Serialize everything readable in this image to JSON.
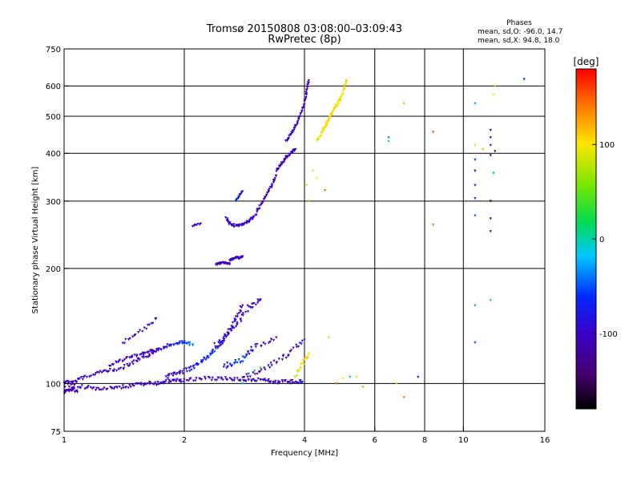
{
  "figure": {
    "title_line1": "Tromsø 20150808 03:08:00–03:09:43",
    "title_line2": "RwPretec (8p)"
  },
  "phase_stats": {
    "heading": "Phases",
    "line_o": "mean, sd,O: -96.0, 14.7",
    "line_x": "mean, sd,X:  94.8, 18.0"
  },
  "colorbar": {
    "title": "[deg]",
    "min": -180,
    "max": 180,
    "ticks": [
      -100,
      0,
      100
    ],
    "tick_labels": [
      "-100",
      "0",
      "100"
    ]
  },
  "chart_data": {
    "type": "scatter",
    "title": "Tromsø 20150808 03:08:00–03:09:43",
    "subtitle": "RwPretec (8p)",
    "xlabel": "Frequency [MHz]",
    "ylabel": "Stationary phase Virtual Height [km]",
    "x_scale": "log",
    "y_scale": "log",
    "xlim": [
      1,
      16
    ],
    "ylim": [
      75,
      750
    ],
    "x_ticks": [
      1,
      2,
      4,
      6,
      8,
      10,
      16
    ],
    "x_tick_labels": [
      "1",
      "2",
      "4",
      "6",
      "8",
      "10",
      "16"
    ],
    "y_ticks": [
      75,
      100,
      200,
      300,
      400,
      500,
      600,
      750
    ],
    "y_tick_labels": [
      "75",
      "100",
      "200",
      "300",
      "400",
      "500",
      "600",
      "750"
    ],
    "grid": true,
    "legend": "none",
    "color_by": "phase [deg]",
    "colormap": "rainbow",
    "traces": [
      {
        "x": [
          1.0,
          1.1,
          1.2,
          1.3,
          1.4,
          1.5,
          1.6,
          1.7,
          1.8,
          1.9,
          2.0,
          2.2,
          2.4,
          2.6,
          2.8,
          3.0,
          3.2,
          3.4,
          3.6,
          3.8,
          3.95
        ],
        "y": [
          99,
          98,
          97,
          97,
          98,
          99,
          100,
          100,
          101,
          102,
          102,
          103,
          103,
          103,
          102,
          102,
          102,
          101,
          101,
          101,
          101
        ],
        "phase": [
          -110,
          -105,
          -108,
          -102,
          -110,
          -104,
          -98,
          -106,
          -100,
          -95,
          -102,
          -108,
          -100,
          -96,
          -104,
          -110,
          -106,
          -100,
          -104,
          -108,
          -70
        ],
        "jitter": 0.02,
        "density": 3
      },
      {
        "x": [
          1.0,
          1.05,
          1.1,
          1.2,
          1.3,
          1.4,
          1.5,
          1.6,
          1.7
        ],
        "y": [
          101,
          100,
          103,
          106,
          108,
          110,
          114,
          118,
          121
        ],
        "phase": [
          -105,
          -110,
          -100,
          -108,
          -104,
          -102,
          -98,
          -106,
          -100
        ],
        "jitter": 0.02,
        "density": 3
      },
      {
        "x": [
          1.0,
          1.02,
          1.05,
          1.08
        ],
        "y": [
          95,
          96,
          97,
          95
        ],
        "phase": [
          -110,
          -108,
          -112,
          -105
        ],
        "jitter": 0.02,
        "density": 3
      },
      {
        "x": [
          1.3,
          1.4,
          1.5,
          1.6,
          1.7,
          1.8,
          1.9,
          2.0,
          2.1
        ],
        "y": [
          112,
          115,
          118,
          121,
          122,
          125,
          127,
          128,
          126
        ],
        "phase": [
          -100,
          -104,
          -98,
          -102,
          -96,
          -90,
          -70,
          -60,
          -40
        ],
        "jitter": 0.02,
        "density": 3
      },
      {
        "x": [
          1.8,
          1.9,
          2.0,
          2.1,
          2.2,
          2.3,
          2.4,
          2.5,
          2.6,
          2.7,
          2.8
        ],
        "y": [
          104,
          106,
          108,
          110,
          114,
          118,
          124,
          130,
          138,
          148,
          160
        ],
        "phase": [
          -100,
          -96,
          -90,
          -80,
          -70,
          -60,
          -75,
          -90,
          -85,
          -95,
          -100
        ],
        "jitter": 0.025,
        "density": 3
      },
      {
        "x": [
          2.4,
          2.5,
          2.6,
          2.7,
          2.8,
          2.9,
          3.0,
          3.1
        ],
        "y": [
          126,
          130,
          136,
          142,
          150,
          158,
          162,
          165
        ],
        "phase": [
          -90,
          -96,
          -100,
          -92,
          -104,
          -98,
          -110,
          -106
        ],
        "jitter": 0.03,
        "density": 2
      },
      {
        "x": [
          2.5,
          2.6,
          2.7,
          2.8,
          2.9,
          3.0,
          3.2,
          3.4
        ],
        "y": [
          110,
          112,
          114,
          116,
          120,
          124,
          128,
          132
        ],
        "phase": [
          -80,
          -70,
          -60,
          -50,
          -80,
          -96,
          -104,
          -110
        ],
        "jitter": 0.03,
        "density": 2
      },
      {
        "x": [
          2.8,
          3.0,
          3.2,
          3.4,
          3.6,
          3.8,
          4.0
        ],
        "y": [
          104,
          106,
          110,
          114,
          118,
          124,
          130
        ],
        "phase": [
          -110,
          -106,
          -110,
          -102,
          -108,
          -100,
          -60
        ],
        "jitter": 0.025,
        "density": 2
      },
      {
        "x": [
          1.4,
          1.5,
          1.6,
          1.7
        ],
        "y": [
          128,
          133,
          140,
          148
        ],
        "phase": [
          -90,
          -104,
          -98,
          -100
        ],
        "jitter": 0.02,
        "density": 2
      },
      {
        "x": [
          2.4,
          2.45,
          2.5,
          2.55,
          2.6
        ],
        "y": [
          205,
          206,
          207,
          206,
          205
        ],
        "phase": [
          -110,
          -106,
          -102,
          -108,
          -104
        ],
        "jitter": 0.01,
        "density": 2
      },
      {
        "x": [
          2.6,
          2.65,
          2.7,
          2.75,
          2.8
        ],
        "y": [
          210,
          212,
          214,
          213,
          215
        ],
        "phase": [
          -102,
          -108,
          -104,
          -100,
          -110
        ],
        "jitter": 0.01,
        "density": 2
      },
      {
        "x": [
          2.1,
          2.2
        ],
        "y": [
          258,
          262
        ],
        "phase": [
          -108,
          -104
        ],
        "jitter": 0.01,
        "density": 2
      },
      {
        "x": [
          2.55,
          2.6,
          2.7,
          2.8,
          2.9,
          3.0,
          3.1,
          3.2,
          3.3,
          3.4
        ],
        "y": [
          270,
          262,
          258,
          260,
          265,
          275,
          290,
          308,
          328,
          350
        ],
        "phase": [
          -100,
          -96,
          -104,
          -100,
          -102,
          -98,
          -104,
          -106,
          -102,
          -108
        ],
        "jitter": 0.015,
        "density": 3
      },
      {
        "x": [
          2.7,
          2.75,
          2.8
        ],
        "y": [
          300,
          310,
          318
        ],
        "phase": [
          -70,
          -80,
          -90
        ],
        "jitter": 0.01,
        "density": 2
      },
      {
        "x": [
          3.4,
          3.5,
          3.6,
          3.7,
          3.8
        ],
        "y": [
          360,
          375,
          390,
          400,
          410
        ],
        "phase": [
          -104,
          -100,
          -106,
          -102,
          -108
        ],
        "jitter": 0.012,
        "density": 3
      },
      {
        "x": [
          3.6,
          3.7,
          3.8,
          3.9,
          4.0,
          4.05,
          4.1
        ],
        "y": [
          430,
          450,
          470,
          500,
          540,
          580,
          620
        ],
        "phase": [
          -100,
          -104,
          -98,
          -100,
          -96,
          -104,
          -108
        ],
        "jitter": 0.012,
        "density": 3
      },
      {
        "x": [
          4.3,
          4.4,
          4.5,
          4.6,
          4.7,
          4.8,
          4.9,
          5.0,
          5.1
        ],
        "y": [
          430,
          450,
          470,
          490,
          510,
          530,
          550,
          580,
          620
        ],
        "phase": [
          90,
          100,
          95,
          110,
          105,
          100,
          95,
          100,
          110
        ],
        "jitter": 0.015,
        "density": 3
      },
      {
        "x": [
          3.8,
          3.9,
          4.0,
          4.1
        ],
        "y": [
          105,
          110,
          115,
          120
        ],
        "phase": [
          80,
          95,
          110,
          100
        ],
        "jitter": 0.02,
        "density": 2
      }
    ],
    "points": [
      {
        "x": 4.3,
        "y": 345,
        "phase": 100
      },
      {
        "x": 4.5,
        "y": 320,
        "phase": 140
      },
      {
        "x": 4.2,
        "y": 360,
        "phase": 110
      },
      {
        "x": 4.05,
        "y": 330,
        "phase": 85
      },
      {
        "x": 4.1,
        "y": 300,
        "phase": 120
      },
      {
        "x": 5.6,
        "y": 98,
        "phase": 60
      },
      {
        "x": 5.2,
        "y": 104,
        "phase": 20
      },
      {
        "x": 4.6,
        "y": 132,
        "phase": 110
      },
      {
        "x": 4.8,
        "y": 100,
        "phase": 140
      },
      {
        "x": 5.0,
        "y": 103,
        "phase": 100
      },
      {
        "x": 5.4,
        "y": 104,
        "phase": 90
      },
      {
        "x": 6.5,
        "y": 440,
        "phase": -40
      },
      {
        "x": 6.5,
        "y": 430,
        "phase": 10
      },
      {
        "x": 7.1,
        "y": 540,
        "phase": 120
      },
      {
        "x": 8.4,
        "y": 455,
        "phase": 150
      },
      {
        "x": 8.4,
        "y": 260,
        "phase": 140
      },
      {
        "x": 7.1,
        "y": 92,
        "phase": 140
      },
      {
        "x": 7.7,
        "y": 104,
        "phase": -70
      },
      {
        "x": 6.8,
        "y": 100,
        "phase": 90
      },
      {
        "x": 10.7,
        "y": 540,
        "phase": -30
      },
      {
        "x": 10.7,
        "y": 420,
        "phase": 110
      },
      {
        "x": 10.7,
        "y": 385,
        "phase": -60
      },
      {
        "x": 10.7,
        "y": 360,
        "phase": -90
      },
      {
        "x": 10.7,
        "y": 330,
        "phase": -70
      },
      {
        "x": 10.7,
        "y": 305,
        "phase": -60
      },
      {
        "x": 10.7,
        "y": 275,
        "phase": -50
      },
      {
        "x": 10.7,
        "y": 160,
        "phase": -30
      },
      {
        "x": 10.7,
        "y": 128,
        "phase": -50
      },
      {
        "x": 11.7,
        "y": 460,
        "phase": -105
      },
      {
        "x": 11.7,
        "y": 440,
        "phase": -110
      },
      {
        "x": 11.7,
        "y": 420,
        "phase": -100
      },
      {
        "x": 11.7,
        "y": 395,
        "phase": -110
      },
      {
        "x": 11.7,
        "y": 300,
        "phase": -150
      },
      {
        "x": 11.7,
        "y": 270,
        "phase": -110
      },
      {
        "x": 11.7,
        "y": 250,
        "phase": -120
      },
      {
        "x": 12.0,
        "y": 405,
        "phase": -110
      },
      {
        "x": 11.9,
        "y": 355,
        "phase": -30
      },
      {
        "x": 11.7,
        "y": 165,
        "phase": 20
      },
      {
        "x": 11.9,
        "y": 570,
        "phase": 100
      },
      {
        "x": 12.0,
        "y": 600,
        "phase": 90
      },
      {
        "x": 14.2,
        "y": 625,
        "phase": -60
      },
      {
        "x": 11.2,
        "y": 410,
        "phase": 120
      },
      {
        "x": 3.1,
        "y": 110,
        "phase": 30
      },
      {
        "x": 3.0,
        "y": 108,
        "phase": 0
      },
      {
        "x": 2.9,
        "y": 106,
        "phase": -40
      },
      {
        "x": 2.8,
        "y": 100,
        "phase": -20
      }
    ]
  }
}
